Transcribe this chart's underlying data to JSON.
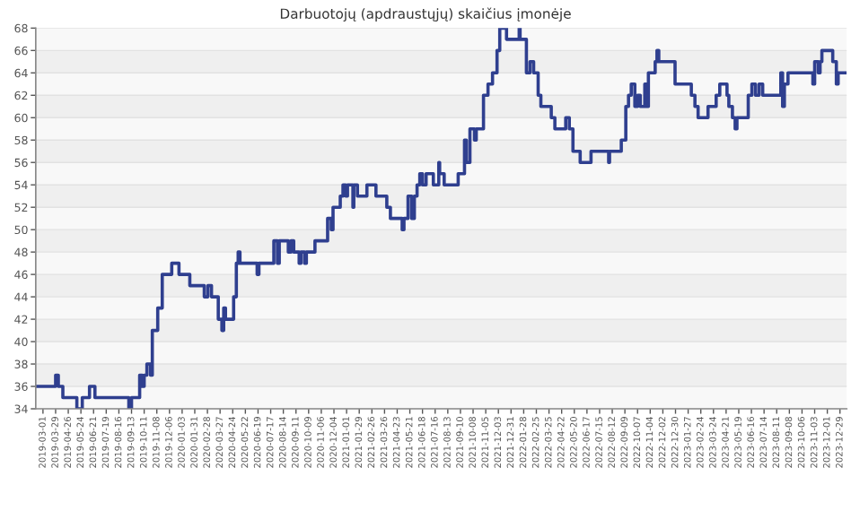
{
  "chart_data": {
    "type": "step",
    "title": "Darbuotojų (apdraustųjų) skaičius įmonėje",
    "xlim": [
      "2019-02-13",
      "2024-01-13"
    ],
    "ylim": [
      34,
      68
    ],
    "yticks": [
      34,
      36,
      38,
      40,
      42,
      44,
      46,
      48,
      50,
      52,
      54,
      56,
      58,
      60,
      62,
      64,
      66,
      68
    ],
    "xticks": [
      "2019-03-01",
      "2019-03-29",
      "2019-04-26",
      "2019-05-24",
      "2019-06-21",
      "2019-07-19",
      "2019-08-16",
      "2019-09-13",
      "2019-10-11",
      "2019-11-08",
      "2019-12-06",
      "2020-01-03",
      "2020-01-31",
      "2020-02-28",
      "2020-03-27",
      "2020-04-24",
      "2020-05-22",
      "2020-06-19",
      "2020-07-17",
      "2020-08-14",
      "2020-09-11",
      "2020-10-09",
      "2020-11-06",
      "2020-12-04",
      "2021-01-01",
      "2021-01-29",
      "2021-02-26",
      "2021-03-26",
      "2021-04-23",
      "2021-05-21",
      "2021-06-18",
      "2021-07-16",
      "2021-08-13",
      "2021-09-10",
      "2021-10-08",
      "2021-11-05",
      "2021-12-03",
      "2021-12-31",
      "2022-01-28",
      "2022-02-25",
      "2022-03-25",
      "2022-04-22",
      "2022-05-20",
      "2022-06-17",
      "2022-07-15",
      "2022-08-12",
      "2022-09-09",
      "2022-10-07",
      "2022-11-04",
      "2022-12-02",
      "2022-12-30",
      "2023-01-27",
      "2023-02-24",
      "2023-03-24",
      "2023-04-21",
      "2023-05-19",
      "2023-06-16",
      "2023-07-14",
      "2023-08-11",
      "2023-09-08",
      "2023-10-06",
      "2023-11-03",
      "2023-12-01",
      "2023-12-29"
    ],
    "grid": "y",
    "legend": false,
    "marker": "none",
    "line_style": "solid",
    "series": [
      {
        "color": "#2f3f8f",
        "x": [
          "2019-02-13",
          "2019-03-29",
          "2019-04-04",
          "2019-04-14",
          "2019-05-15",
          "2019-05-27",
          "2019-06-12",
          "2019-06-24",
          "2019-09-07",
          "2019-09-13",
          "2019-10-01",
          "2019-10-07",
          "2019-10-11",
          "2019-10-17",
          "2019-10-25",
          "2019-10-29",
          "2019-11-10",
          "2019-11-20",
          "2019-12-11",
          "2019-12-27",
          "2020-01-20",
          "2020-02-21",
          "2020-02-29",
          "2020-03-08",
          "2020-03-23",
          "2020-03-31",
          "2020-04-04",
          "2020-04-08",
          "2020-04-26",
          "2020-05-02",
          "2020-05-06",
          "2020-05-10",
          "2020-06-17",
          "2020-06-21",
          "2020-07-24",
          "2020-08-01",
          "2020-08-05",
          "2020-08-25",
          "2020-08-31",
          "2020-09-06",
          "2020-09-18",
          "2020-09-22",
          "2020-09-30",
          "2020-10-04",
          "2020-10-23",
          "2020-11-20",
          "2020-11-28",
          "2020-12-02",
          "2020-12-18",
          "2020-12-24",
          "2020-12-30",
          "2021-01-03",
          "2021-01-15",
          "2021-01-17",
          "2021-01-25",
          "2021-02-15",
          "2021-03-07",
          "2021-03-31",
          "2021-04-08",
          "2021-05-04",
          "2021-05-08",
          "2021-05-17",
          "2021-05-25",
          "2021-05-31",
          "2021-06-06",
          "2021-06-12",
          "2021-06-18",
          "2021-06-26",
          "2021-07-12",
          "2021-07-24",
          "2021-07-26",
          "2021-08-05",
          "2021-09-05",
          "2021-09-19",
          "2021-09-23",
          "2021-10-01",
          "2021-10-11",
          "2021-10-15",
          "2021-10-31",
          "2021-11-10",
          "2021-11-20",
          "2021-11-30",
          "2021-12-06",
          "2021-12-21",
          "2022-01-18",
          "2022-01-20",
          "2022-02-03",
          "2022-02-11",
          "2022-02-19",
          "2022-03-01",
          "2022-03-07",
          "2022-03-30",
          "2022-04-07",
          "2022-05-01",
          "2022-05-09",
          "2022-05-17",
          "2022-06-02",
          "2022-06-26",
          "2022-08-04",
          "2022-08-06",
          "2022-09-01",
          "2022-09-11",
          "2022-09-17",
          "2022-09-23",
          "2022-10-01",
          "2022-10-07",
          "2022-10-13",
          "2022-10-23",
          "2022-10-27",
          "2022-10-31",
          "2022-11-15",
          "2022-11-19",
          "2022-11-23",
          "2022-12-29",
          "2023-02-03",
          "2023-02-11",
          "2023-02-18",
          "2023-03-12",
          "2023-03-30",
          "2023-04-07",
          "2023-04-23",
          "2023-04-27",
          "2023-05-05",
          "2023-05-11",
          "2023-05-15",
          "2023-06-09",
          "2023-06-17",
          "2023-06-25",
          "2023-07-03",
          "2023-07-11",
          "2023-08-20",
          "2023-08-24",
          "2023-08-28",
          "2023-09-05",
          "2023-10-30",
          "2023-11-03",
          "2023-11-11",
          "2023-11-15",
          "2023-11-19",
          "2023-12-13",
          "2023-12-21",
          "2023-12-25",
          "2024-01-09"
        ],
        "values": [
          36,
          37,
          36,
          35,
          34,
          35,
          36,
          35,
          34,
          35,
          37,
          36,
          37,
          38,
          37,
          41,
          43,
          46,
          47,
          46,
          45,
          44,
          45,
          44,
          42,
          41,
          43,
          42,
          44,
          47,
          48,
          47,
          46,
          47,
          49,
          47,
          49,
          48,
          49,
          48,
          47,
          48,
          47,
          48,
          49,
          51,
          50,
          52,
          53,
          54,
          53,
          54,
          52,
          54,
          53,
          54,
          53,
          52,
          51,
          50,
          51,
          53,
          51,
          53,
          54,
          55,
          54,
          55,
          54,
          56,
          55,
          54,
          55,
          58,
          56,
          59,
          58,
          59,
          62,
          63,
          64,
          66,
          68,
          67,
          68,
          67,
          64,
          65,
          64,
          62,
          61,
          60,
          59,
          60,
          59,
          57,
          56,
          57,
          56,
          57,
          58,
          61,
          62,
          63,
          61,
          62,
          61,
          63,
          61,
          64,
          65,
          66,
          65,
          63,
          62,
          61,
          60,
          61,
          62,
          63,
          62,
          61,
          60,
          59,
          60,
          62,
          63,
          62,
          63,
          62,
          64,
          61,
          63,
          64,
          63,
          65,
          64,
          65,
          66,
          65,
          63,
          64,
          64
        ]
      }
    ]
  }
}
